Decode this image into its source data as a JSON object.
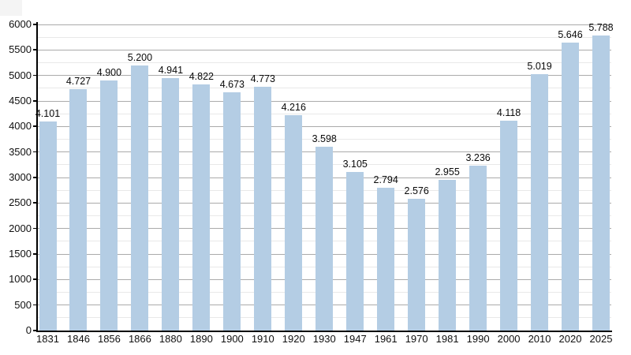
{
  "chart_data": {
    "type": "bar",
    "title": "",
    "xlabel": "",
    "ylabel": "",
    "categories": [
      "1831",
      "1846",
      "1856",
      "1866",
      "1880",
      "1890",
      "1900",
      "1910",
      "1920",
      "1930",
      "1947",
      "1961",
      "1970",
      "1981",
      "1990",
      "2000",
      "2010",
      "2020",
      "2025"
    ],
    "values": [
      4101,
      4727,
      4900,
      5200,
      4941,
      4822,
      4673,
      4773,
      4216,
      3598,
      3105,
      2794,
      2576,
      2955,
      3236,
      4118,
      5019,
      5646,
      5788
    ],
    "value_labels": [
      "4.101",
      "4.727",
      "4.900",
      "5.200",
      "4.941",
      "4.822",
      "4.673",
      "4.773",
      "4.216",
      "3.598",
      "3.105",
      "2.794",
      "2.576",
      "2.955",
      "3.236",
      "4.118",
      "5.019",
      "5.646",
      "5.788"
    ],
    "ylim": [
      0,
      6000
    ],
    "y_major_step": 500,
    "y_minor_step": 250,
    "y_tick_labels": [
      "0",
      "500",
      "1000",
      "1500",
      "2000",
      "2500",
      "3000",
      "3500",
      "4000",
      "4500",
      "5000",
      "5500",
      "6000"
    ],
    "grid": "on",
    "legend": "none",
    "colors": {
      "bar_fill": "#b4cde4",
      "major_gridline": "#ababab",
      "minor_gridline": "#e8e8e8",
      "axis": "#000000",
      "label_text": "#101010",
      "background": "#ffffff"
    }
  }
}
